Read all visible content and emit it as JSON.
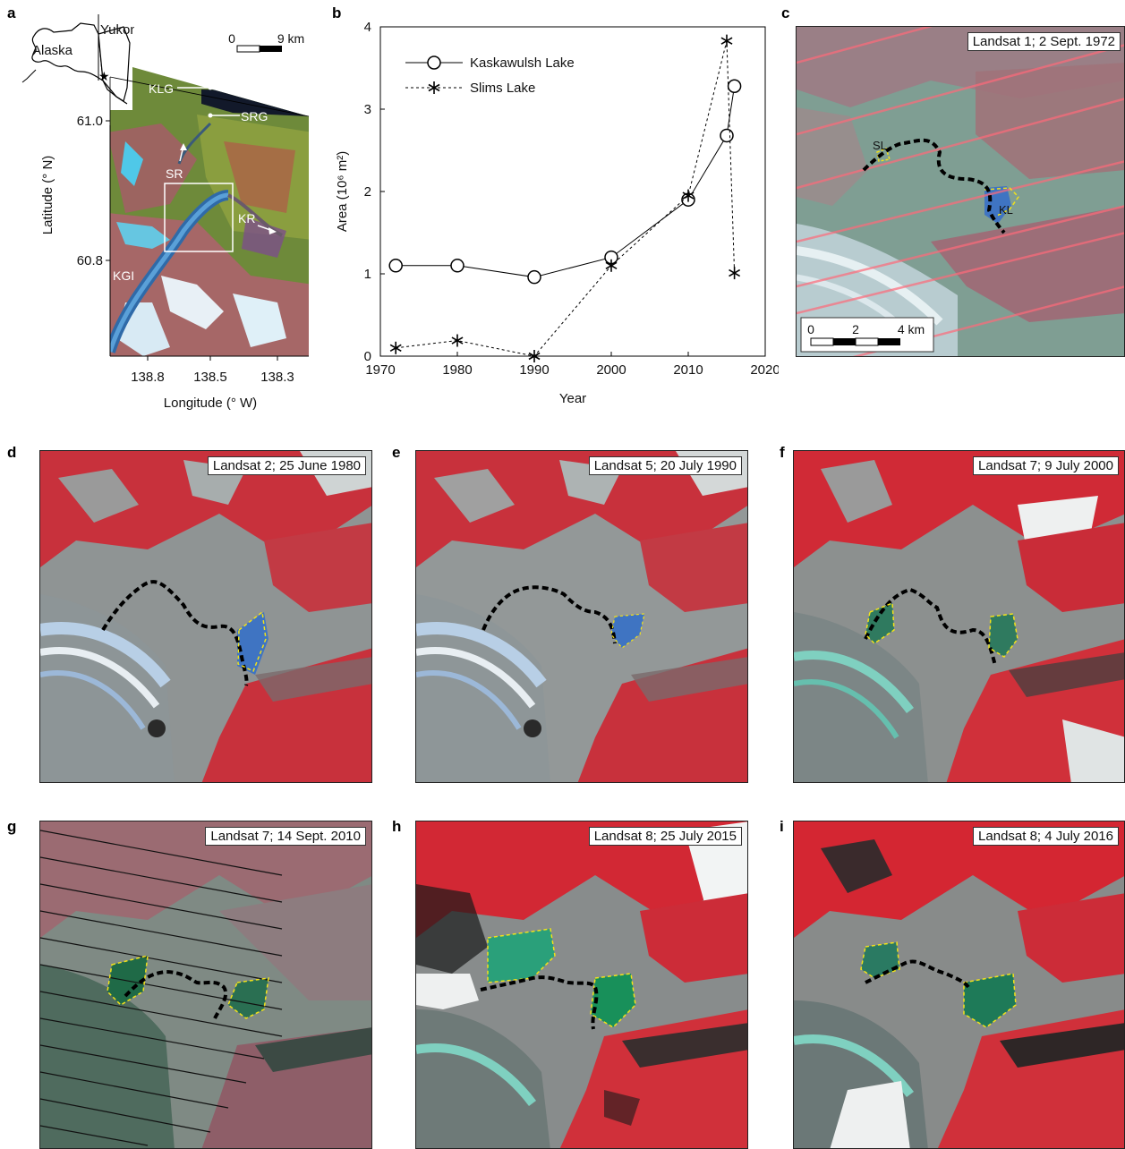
{
  "panel_a": {
    "letter": "a",
    "inset_labels": {
      "alaska": "Alaska",
      "yukon": "Yukon"
    },
    "scale": {
      "zero": "0",
      "end": "9 km"
    },
    "features": {
      "klg": "KLG",
      "srg": "SRG",
      "sr": "SR",
      "kr": "KR",
      "kgi": "KGI"
    },
    "y_axis": {
      "title": "Latitude (° N)",
      "ticks": [
        "61.0",
        "60.8"
      ]
    },
    "x_axis": {
      "title": "Longitude (° W)",
      "ticks": [
        "138.8",
        "138.5",
        "138.3"
      ]
    }
  },
  "panel_b": {
    "letter": "b"
  },
  "chart_data": {
    "type": "line",
    "xlabel": "Year",
    "ylabel": "Area (10⁶ m²)",
    "xlim": [
      1970,
      2020
    ],
    "ylim": [
      0,
      4
    ],
    "xticks": [
      1970,
      1980,
      1990,
      2000,
      2010,
      2020
    ],
    "yticks": [
      0,
      1,
      2,
      3,
      4
    ],
    "legend_position": "top-left",
    "series": [
      {
        "name": "Kaskawulsh Lake",
        "marker": "open-circle",
        "line": "solid",
        "x": [
          1972,
          1980,
          1990,
          2000,
          2010,
          2015,
          2016
        ],
        "y": [
          1.1,
          1.1,
          0.96,
          1.2,
          1.9,
          2.68,
          3.28
        ]
      },
      {
        "name": "Slims Lake",
        "marker": "asterisk",
        "line": "dashed",
        "x": [
          1972,
          1980,
          1990,
          2000,
          2010,
          2015,
          2016
        ],
        "y": [
          0.1,
          0.19,
          0.0,
          1.1,
          1.95,
          3.83,
          1.01
        ]
      }
    ]
  },
  "panel_c": {
    "letter": "c",
    "caption": "Landsat 1; 2 Sept. 1972",
    "lake_labels": {
      "sl": "SL",
      "kl": "KL"
    },
    "scale": {
      "t0": "0",
      "t1": "2",
      "t2": "4 km"
    }
  },
  "panels_scenes": [
    {
      "letter": "d",
      "caption": "Landsat 2; 25 June 1980"
    },
    {
      "letter": "e",
      "caption": "Landsat 5; 20 July 1990"
    },
    {
      "letter": "f",
      "caption": "Landsat 7; 9 July 2000"
    },
    {
      "letter": "g",
      "caption": "Landsat 7; 14 Sept. 2010"
    },
    {
      "letter": "h",
      "caption": "Landsat 8; 25 July 2015"
    },
    {
      "letter": "i",
      "caption": "Landsat 8; 4 July 2016"
    }
  ],
  "colors": {
    "vegetation_red": "#c8313c",
    "glacier_grey": "#8f9494",
    "lake_blue": "#3f74c2",
    "lake_green": "#1a7a52",
    "snow": "#f0f2f2",
    "dam_outline": "#000000",
    "lake_outline": "#f2e21a"
  }
}
